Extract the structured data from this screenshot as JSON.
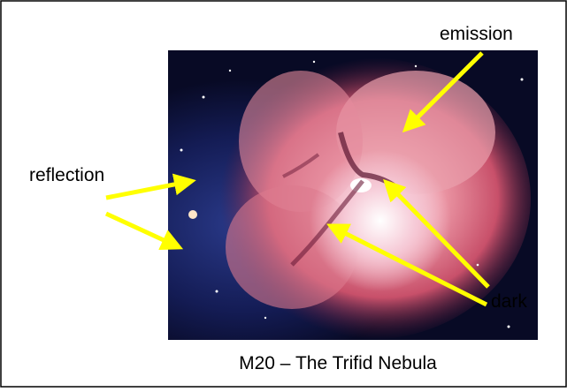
{
  "labels": {
    "emission": "emission",
    "reflection": "reflection",
    "dark": "dark"
  },
  "caption": "M20 – The Trifid Nebula"
}
